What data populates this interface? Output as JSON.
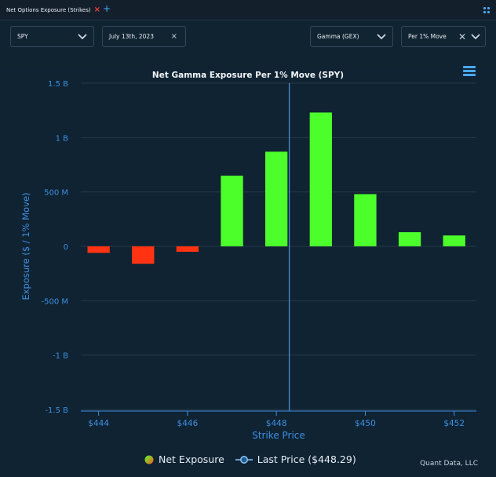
{
  "tab": {
    "title": "Net Options Exposure (Strikes)"
  },
  "controls": {
    "ticker": "SPY",
    "date": "July 13th, 2023",
    "metric": "Gamma (GEX)",
    "normalization": "Per 1% Move"
  },
  "chart_data": {
    "type": "bar",
    "title": "Net Gamma Exposure Per 1% Move (SPY)",
    "xlabel": "Strike Price",
    "ylabel": "Exposure ($ / 1% Move)",
    "categories": [
      444,
      445,
      446,
      447,
      448,
      449,
      450,
      451,
      452
    ],
    "x_tick_labels": [
      "$444",
      "$446",
      "$448",
      "$450",
      "$452"
    ],
    "x_ticks": [
      444,
      446,
      448,
      450,
      452
    ],
    "xlim": [
      443.6,
      452.5
    ],
    "y_ticks": [
      1500000000.0,
      1000000000.0,
      500000000.0,
      0,
      -500000000.0,
      -1000000000.0,
      -1500000000.0
    ],
    "y_tick_labels": [
      "1.5 B",
      "1 B",
      "500 M",
      "0",
      "-500 M",
      "-1 B",
      "-1.5 B"
    ],
    "ylim": [
      -1500000000.0,
      1500000000.0
    ],
    "series": [
      {
        "name": "Net Exposure",
        "values": [
          -60000000,
          -160000000,
          -50000000,
          650000000,
          870000000,
          1230000000,
          480000000,
          130000000,
          100000000
        ]
      }
    ],
    "last_price": 448.29,
    "positive_color": "#4cff2a",
    "negative_color": "#ff3311",
    "axis_color": "#3d8fe0",
    "grid": true
  },
  "legend": {
    "net_exposure": "Net Exposure",
    "last_price": "Last Price ($448.29)"
  },
  "credit": "Quant Data, LLC"
}
